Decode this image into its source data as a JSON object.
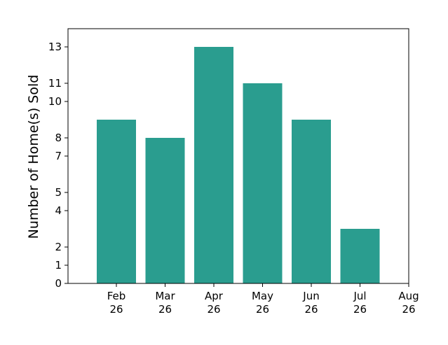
{
  "chart_data": {
    "type": "bar",
    "categories": [
      "Feb\n26",
      "Mar\n26",
      "Apr\n26",
      "May\n26",
      "Jun\n26",
      "Jul\n26"
    ],
    "values": [
      9,
      8,
      13,
      11,
      9,
      3
    ],
    "x_tick_labels": [
      "Feb\n26",
      "Mar\n26",
      "Apr\n26",
      "May\n26",
      "Jun\n26",
      "Jul\n26",
      "Aug\n26"
    ],
    "y_ticks": [
      0,
      1,
      2,
      4,
      5,
      7,
      8,
      10,
      11,
      13
    ],
    "ylim": [
      0,
      14
    ],
    "title": "",
    "xlabel": "",
    "ylabel": "Number of Home(s) Sold",
    "bar_color": "#2a9d8f",
    "grid": false,
    "legend": "none"
  }
}
